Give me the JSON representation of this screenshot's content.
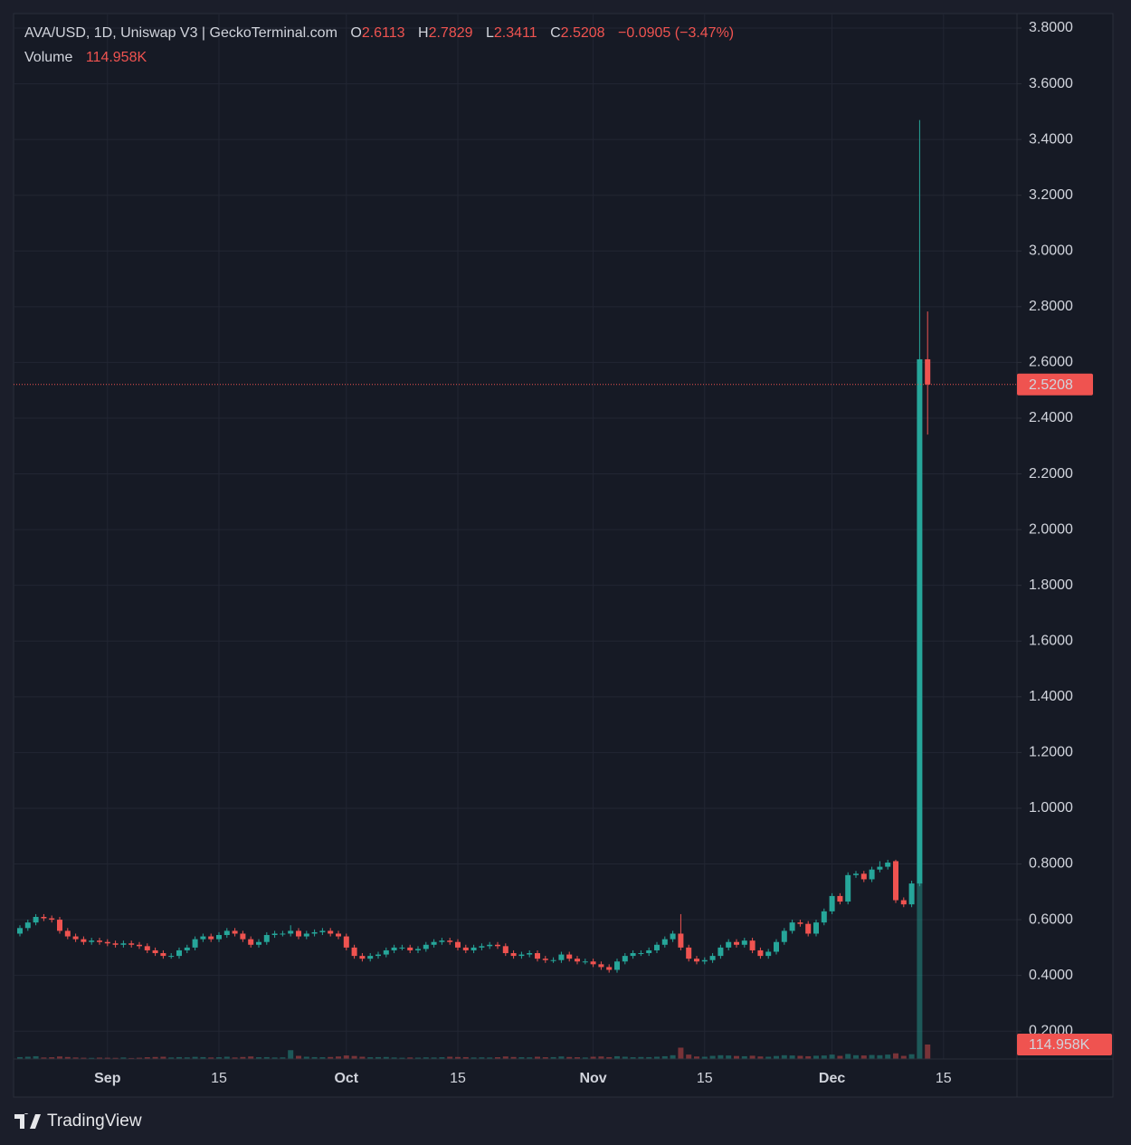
{
  "chart_data": {
    "type": "candlestick",
    "title": "AVA/USD, 1D, Uniswap V3 | GeckoTerminal.com",
    "ohlc_labels": [
      "O",
      "H",
      "L",
      "C"
    ],
    "change": {
      "value": -0.0905,
      "label": "−0.0905"
    },
    "change_pct": {
      "value": -3.47,
      "label": "(−3.47%)"
    },
    "branding": "TradingView",
    "up_color": "#26a69a",
    "down_color": "#ef5350",
    "grid": true,
    "categories": [
      null,
      null,
      null,
      null,
      null,
      null,
      null,
      null,
      null,
      null,
      null,
      "Sep",
      null,
      null,
      null,
      null,
      null,
      null,
      null,
      null,
      null,
      null,
      null,
      null,
      null,
      "15",
      null,
      null,
      null,
      null,
      null,
      null,
      null,
      null,
      null,
      null,
      null,
      null,
      null,
      null,
      null,
      "Oct",
      null,
      null,
      null,
      null,
      null,
      null,
      null,
      null,
      null,
      null,
      null,
      null,
      null,
      "15",
      null,
      null,
      null,
      null,
      null,
      null,
      null,
      null,
      null,
      null,
      null,
      null,
      null,
      null,
      null,
      null,
      "Nov",
      null,
      null,
      null,
      null,
      null,
      null,
      null,
      null,
      null,
      null,
      null,
      null,
      null,
      "15",
      null,
      null,
      null,
      null,
      null,
      null,
      null,
      null,
      null,
      null,
      null,
      null,
      null,
      null,
      null,
      "Dec",
      null,
      null,
      null,
      null,
      null,
      null,
      null,
      null,
      null,
      null,
      null,
      null,
      null,
      "15"
    ],
    "open": [
      0.55,
      0.57,
      0.59,
      0.61,
      0.605,
      0.6,
      0.56,
      0.54,
      0.53,
      0.52,
      0.525,
      0.52,
      0.515,
      0.51,
      0.515,
      0.51,
      0.505,
      0.49,
      0.48,
      0.47,
      0.47,
      0.49,
      0.5,
      0.53,
      0.54,
      0.53,
      0.545,
      0.56,
      0.55,
      0.53,
      0.51,
      0.52,
      0.545,
      0.55,
      0.55,
      0.56,
      0.54,
      0.55,
      0.555,
      0.56,
      0.55,
      0.54,
      0.5,
      0.47,
      0.46,
      0.47,
      0.475,
      0.49,
      0.5,
      0.5,
      0.49,
      0.495,
      0.51,
      0.52,
      0.525,
      0.52,
      0.5,
      0.49,
      0.5,
      0.505,
      0.51,
      0.505,
      0.48,
      0.47,
      0.475,
      0.48,
      0.46,
      0.455,
      0.455,
      0.475,
      0.46,
      0.45,
      0.45,
      0.44,
      0.43,
      0.42,
      0.45,
      0.47,
      0.48,
      0.48,
      0.49,
      0.51,
      0.53,
      0.55,
      0.5,
      0.46,
      0.45,
      0.455,
      0.47,
      0.5,
      0.52,
      0.51,
      0.525,
      0.49,
      0.47,
      0.485,
      0.52,
      0.56,
      0.59,
      0.585,
      0.55,
      0.59,
      0.63,
      0.685,
      0.665,
      0.76,
      0.765,
      0.745,
      0.78,
      0.79,
      0.81,
      0.67,
      0.655,
      0.73,
      2.6113,
      null,
      null
    ],
    "high": [
      0.58,
      0.6,
      0.62,
      0.62,
      0.615,
      0.61,
      0.57,
      0.55,
      0.54,
      0.535,
      0.535,
      0.53,
      0.525,
      0.525,
      0.525,
      0.52,
      0.515,
      0.5,
      0.49,
      0.48,
      0.5,
      0.51,
      0.54,
      0.55,
      0.55,
      0.555,
      0.57,
      0.57,
      0.56,
      0.54,
      0.53,
      0.555,
      0.56,
      0.56,
      0.58,
      0.57,
      0.56,
      0.565,
      0.57,
      0.57,
      0.56,
      0.55,
      0.51,
      0.48,
      0.48,
      0.485,
      0.5,
      0.51,
      0.51,
      0.51,
      0.505,
      0.52,
      0.53,
      0.535,
      0.535,
      0.53,
      0.51,
      0.51,
      0.515,
      0.52,
      0.52,
      0.515,
      0.49,
      0.485,
      0.49,
      0.49,
      0.47,
      0.465,
      0.485,
      0.485,
      0.47,
      0.46,
      0.46,
      0.45,
      0.44,
      0.46,
      0.48,
      0.49,
      0.49,
      0.5,
      0.52,
      0.54,
      0.56,
      0.62,
      0.51,
      0.47,
      0.465,
      0.48,
      0.51,
      0.53,
      0.53,
      0.535,
      0.535,
      0.5,
      0.495,
      0.53,
      0.57,
      0.6,
      0.6,
      0.595,
      0.6,
      0.64,
      0.695,
      0.695,
      0.77,
      0.775,
      0.775,
      0.79,
      0.81,
      0.815,
      0.815,
      0.68,
      0.74,
      3.47,
      2.7829,
      null,
      null
    ],
    "low": [
      0.54,
      0.56,
      0.58,
      0.595,
      0.59,
      0.55,
      0.53,
      0.52,
      0.51,
      0.51,
      0.51,
      0.505,
      0.5,
      0.5,
      0.5,
      0.495,
      0.48,
      0.47,
      0.46,
      0.46,
      0.46,
      0.48,
      0.49,
      0.52,
      0.52,
      0.52,
      0.535,
      0.54,
      0.52,
      0.5,
      0.5,
      0.51,
      0.535,
      0.54,
      0.54,
      0.53,
      0.53,
      0.54,
      0.545,
      0.54,
      0.53,
      0.49,
      0.46,
      0.45,
      0.45,
      0.46,
      0.465,
      0.48,
      0.49,
      0.48,
      0.48,
      0.485,
      0.5,
      0.51,
      0.51,
      0.49,
      0.48,
      0.48,
      0.49,
      0.495,
      0.495,
      0.47,
      0.46,
      0.46,
      0.465,
      0.45,
      0.445,
      0.445,
      0.445,
      0.45,
      0.44,
      0.44,
      0.43,
      0.42,
      0.41,
      0.41,
      0.44,
      0.46,
      0.47,
      0.47,
      0.48,
      0.5,
      0.52,
      0.49,
      0.45,
      0.44,
      0.44,
      0.445,
      0.46,
      0.49,
      0.5,
      0.5,
      0.48,
      0.46,
      0.46,
      0.475,
      0.51,
      0.55,
      0.575,
      0.54,
      0.54,
      0.58,
      0.62,
      0.655,
      0.655,
      0.75,
      0.735,
      0.735,
      0.77,
      0.78,
      0.66,
      0.645,
      0.645,
      0.72,
      2.3411,
      null,
      null
    ],
    "close": [
      0.57,
      0.59,
      0.61,
      0.605,
      0.6,
      0.56,
      0.54,
      0.53,
      0.52,
      0.525,
      0.52,
      0.515,
      0.51,
      0.515,
      0.51,
      0.505,
      0.49,
      0.48,
      0.47,
      0.47,
      0.49,
      0.5,
      0.53,
      0.54,
      0.53,
      0.545,
      0.56,
      0.55,
      0.53,
      0.51,
      0.52,
      0.545,
      0.55,
      0.55,
      0.56,
      0.54,
      0.55,
      0.555,
      0.56,
      0.55,
      0.54,
      0.5,
      0.47,
      0.46,
      0.47,
      0.475,
      0.49,
      0.5,
      0.5,
      0.49,
      0.495,
      0.51,
      0.52,
      0.525,
      0.52,
      0.5,
      0.49,
      0.5,
      0.505,
      0.51,
      0.505,
      0.48,
      0.47,
      0.475,
      0.48,
      0.46,
      0.455,
      0.455,
      0.475,
      0.46,
      0.45,
      0.45,
      0.44,
      0.43,
      0.42,
      0.45,
      0.47,
      0.48,
      0.48,
      0.49,
      0.51,
      0.53,
      0.55,
      0.5,
      0.46,
      0.45,
      0.455,
      0.47,
      0.5,
      0.52,
      0.51,
      0.525,
      0.49,
      0.47,
      0.485,
      0.52,
      0.56,
      0.59,
      0.585,
      0.55,
      0.59,
      0.63,
      0.685,
      0.665,
      0.76,
      0.765,
      0.745,
      0.78,
      0.79,
      0.805,
      0.67,
      0.655,
      0.73,
      2.6113,
      2.5208,
      null,
      null
    ],
    "volume": {
      "name": "Volume",
      "values": [
        15000,
        18000,
        22000,
        12000,
        14000,
        20000,
        16000,
        12000,
        10000,
        9000,
        11000,
        10000,
        9000,
        12000,
        8000,
        10000,
        14000,
        16000,
        18000,
        12000,
        15000,
        13000,
        17000,
        15000,
        12000,
        14000,
        18000,
        12000,
        16000,
        20000,
        14000,
        15000,
        12000,
        13000,
        70000,
        25000,
        18000,
        15000,
        14000,
        16000,
        20000,
        28000,
        24000,
        18000,
        14000,
        15000,
        16000,
        12000,
        10000,
        12000,
        11000,
        13000,
        12000,
        14000,
        18000,
        16000,
        15000,
        12000,
        13000,
        12000,
        14000,
        20000,
        16000,
        14000,
        13000,
        18000,
        14000,
        15000,
        20000,
        16000,
        14000,
        12000,
        18000,
        20000,
        15000,
        22000,
        18000,
        14000,
        16000,
        15000,
        18000,
        22000,
        30000,
        90000,
        35000,
        20000,
        18000,
        25000,
        30000,
        28000,
        24000,
        22000,
        26000,
        20000,
        18000,
        24000,
        30000,
        28000,
        25000,
        22000,
        26000,
        28000,
        35000,
        25000,
        40000,
        30000,
        28000,
        32000,
        30000,
        35000,
        45000,
        25000,
        38000,
        1400000,
        114958,
        null,
        null
      ],
      "value_labels": [
        null,
        null,
        null,
        null,
        null,
        null,
        null,
        null,
        null,
        null,
        null,
        null,
        null,
        null,
        null,
        null,
        null,
        null,
        null,
        null,
        null,
        null,
        null,
        null,
        null,
        null,
        null,
        null,
        null,
        null,
        null,
        null,
        null,
        null,
        null,
        null,
        null,
        null,
        null,
        null,
        null,
        null,
        null,
        null,
        null,
        null,
        null,
        null,
        null,
        null,
        null,
        null,
        null,
        null,
        null,
        null,
        null,
        null,
        null,
        null,
        null,
        null,
        null,
        null,
        null,
        null,
        null,
        null,
        null,
        null,
        null,
        null,
        null,
        null,
        null,
        null,
        null,
        null,
        null,
        null,
        null,
        null,
        null,
        null,
        null,
        null,
        null,
        null,
        null,
        null,
        null,
        null,
        null,
        null,
        null,
        null,
        null,
        null,
        null,
        null,
        null,
        null,
        null,
        null,
        null,
        null,
        null,
        null,
        null,
        null,
        null,
        null,
        null,
        null,
        "114.958K",
        null,
        null
      ]
    },
    "ylim": [
      0.1,
      3.852
    ],
    "yticks": [
      {
        "value": 0.2,
        "label": "0.2000"
      },
      {
        "value": 0.4,
        "label": "0.4000"
      },
      {
        "value": 0.6,
        "label": "0.6000"
      },
      {
        "value": 0.8,
        "label": "0.8000"
      },
      {
        "value": 1,
        "label": "1.0000"
      },
      {
        "value": 1.2,
        "label": "1.2000"
      },
      {
        "value": 1.4,
        "label": "1.4000"
      },
      {
        "value": 1.6,
        "label": "1.6000"
      },
      {
        "value": 1.8,
        "label": "1.8000"
      },
      {
        "value": 2,
        "label": "2.0000"
      },
      {
        "value": 2.2,
        "label": "2.2000"
      },
      {
        "value": 2.4,
        "label": "2.4000"
      },
      {
        "value": 2.6,
        "label": "2.6000"
      },
      {
        "value": 2.8,
        "label": "2.8000"
      },
      {
        "value": 3,
        "label": "3.0000"
      },
      {
        "value": 3.2,
        "label": "3.2000"
      },
      {
        "value": 3.4,
        "label": "3.4000"
      },
      {
        "value": 3.6,
        "label": "3.6000"
      },
      {
        "value": 3.8,
        "label": "3.8000"
      }
    ]
  }
}
